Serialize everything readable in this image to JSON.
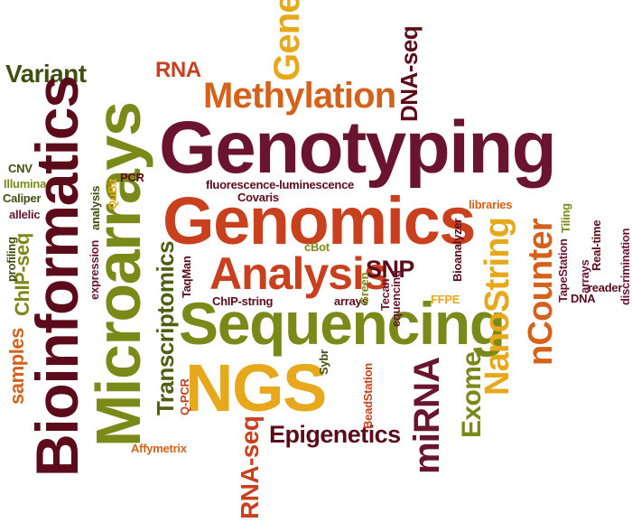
{
  "colors": {
    "dark_red": "#5c0b1a",
    "maroon": "#6b1430",
    "olive": "#7a8a18",
    "dark_olive": "#4f5e12",
    "orange": "#d4621a",
    "red_orange": "#c8401e",
    "gold": "#e8a81c",
    "dark_green": "#3f4f10"
  },
  "words": {
    "bioinformatics": "Bioinformatics",
    "microarrays": "Microarrays",
    "genotyping": "Genotyping",
    "genomics": "Genomics",
    "sequencing": "Sequencing",
    "analysis": "Analysis",
    "ngs": "NGS",
    "methylation": "Methylation",
    "gene": "Gene",
    "variant": "Variant",
    "rna": "RNA",
    "dna_seq": "DNA-seq",
    "nanostring": "NanoString",
    "ncounter": "nCounter",
    "mirna": "miRNA",
    "exome": "Exome",
    "epigenetics": "Epigenetics",
    "rna_seq": "RNA-seq",
    "transcriptomics": "Transcriptomics",
    "snp": "SNP",
    "chip_seq": "ChIP-seq",
    "samples": "samples",
    "cnv": "CNV",
    "illumina": "Illumina",
    "caliper": "Caliper",
    "allelic": "allelic",
    "profiling": "profiling",
    "expression": "expression",
    "analysis_small": "analysis",
    "qubit": "QuBit",
    "pcr": "PCR",
    "fluorescence": "fluorescence-luminescence",
    "covaris": "Covaris",
    "cbot": "cBot",
    "taqman": "TaqMan",
    "chip_string": "ChIP-string",
    "arrays": "arrays",
    "green": "Green",
    "tecan": "Tecan",
    "sequencing_small": "equencing",
    "bioanalyzer": "Bioanalyzer",
    "ffpe": "FFPE",
    "libraries": "libraries",
    "tiling": "Tiling",
    "tapestation": "TapeStation",
    "arrays_small": "arrays",
    "dna": "DNA",
    "real_time": "Real-time",
    "reader": "reader",
    "discrimination": "discrimination",
    "sybr": "Sybr",
    "beadstation": "BeadStation",
    "q_pcr": "Q-PCR",
    "affymetrix": "Affymetrix"
  }
}
